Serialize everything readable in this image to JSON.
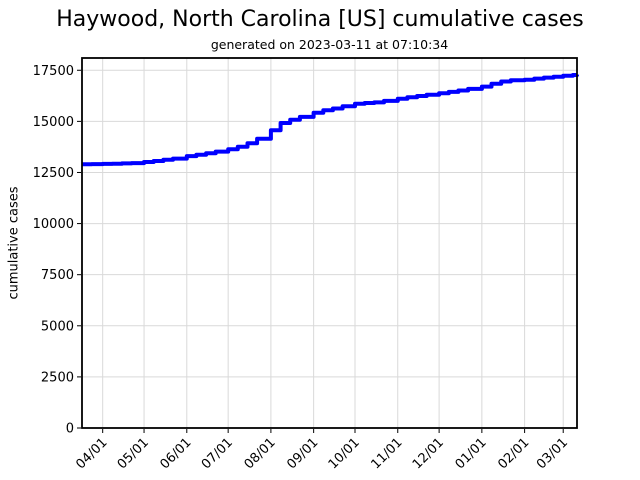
{
  "figure": {
    "title": "Haywood, North Carolina [US] cumulative cases",
    "subtitle": "generated on 2023-03-11 at 07:10:34"
  },
  "chart_data": {
    "type": "line",
    "title": "Haywood, North Carolina [US] cumulative cases",
    "subtitle": "generated on 2023-03-11 at 07:10:34",
    "xlabel": "",
    "ylabel": "cumulative cases",
    "legend": "none",
    "grid": true,
    "grid_color": "#d9d9d9",
    "axis_color": "#000000",
    "line_color": "#0000ff",
    "line_width": 4,
    "step_interpolation": "post",
    "ylim": [
      0,
      18100
    ],
    "y_ticks": [
      {
        "v": 0,
        "label": "0"
      },
      {
        "v": 2500,
        "label": "2500"
      },
      {
        "v": 5000,
        "label": "5000"
      },
      {
        "v": 7500,
        "label": "7500"
      },
      {
        "v": 10000,
        "label": "10000"
      },
      {
        "v": 12500,
        "label": "12500"
      },
      {
        "v": 15000,
        "label": "15000"
      },
      {
        "v": 17500,
        "label": "17500"
      }
    ],
    "x_axis_span_days": 359,
    "x_ticks": [
      {
        "d": 15,
        "label": "04/01"
      },
      {
        "d": 45,
        "label": "05/01"
      },
      {
        "d": 76,
        "label": "06/01"
      },
      {
        "d": 106,
        "label": "07/01"
      },
      {
        "d": 137,
        "label": "08/01"
      },
      {
        "d": 168,
        "label": "09/01"
      },
      {
        "d": 198,
        "label": "10/01"
      },
      {
        "d": 229,
        "label": "11/01"
      },
      {
        "d": 259,
        "label": "12/01"
      },
      {
        "d": 290,
        "label": "01/01"
      },
      {
        "d": 321,
        "label": "02/01"
      },
      {
        "d": 349,
        "label": "03/01"
      }
    ],
    "series": [
      {
        "name": "cumulative cases",
        "points": [
          [
            0,
            12900
          ],
          [
            7,
            12910
          ],
          [
            15,
            12920
          ],
          [
            22,
            12930
          ],
          [
            29,
            12945
          ],
          [
            36,
            12960
          ],
          [
            45,
            13010
          ],
          [
            52,
            13060
          ],
          [
            59,
            13120
          ],
          [
            66,
            13180
          ],
          [
            76,
            13300
          ],
          [
            83,
            13370
          ],
          [
            90,
            13440
          ],
          [
            97,
            13520
          ],
          [
            106,
            13640
          ],
          [
            113,
            13760
          ],
          [
            120,
            13930
          ],
          [
            127,
            14150
          ],
          [
            137,
            14570
          ],
          [
            144,
            14920
          ],
          [
            151,
            15080
          ],
          [
            158,
            15220
          ],
          [
            168,
            15420
          ],
          [
            175,
            15540
          ],
          [
            182,
            15630
          ],
          [
            189,
            15740
          ],
          [
            198,
            15860
          ],
          [
            205,
            15900
          ],
          [
            212,
            15930
          ],
          [
            219,
            16000
          ],
          [
            229,
            16110
          ],
          [
            236,
            16180
          ],
          [
            243,
            16240
          ],
          [
            250,
            16300
          ],
          [
            259,
            16380
          ],
          [
            266,
            16440
          ],
          [
            273,
            16510
          ],
          [
            280,
            16590
          ],
          [
            290,
            16700
          ],
          [
            297,
            16840
          ],
          [
            304,
            16950
          ],
          [
            311,
            17010
          ],
          [
            321,
            17040
          ],
          [
            328,
            17090
          ],
          [
            335,
            17140
          ],
          [
            342,
            17180
          ],
          [
            349,
            17230
          ],
          [
            356,
            17270
          ],
          [
            359,
            17290
          ]
        ]
      }
    ]
  }
}
